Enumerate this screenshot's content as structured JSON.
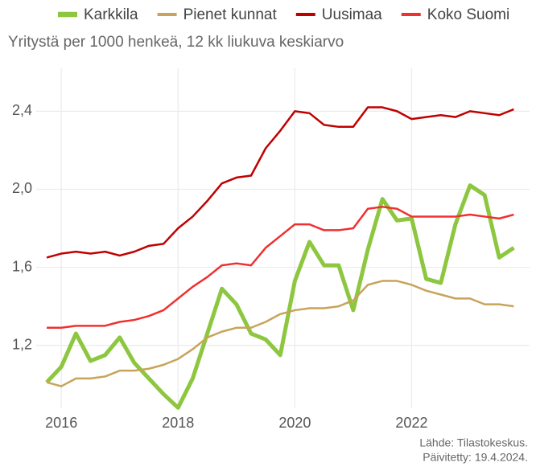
{
  "chart_data": {
    "type": "line",
    "subtitle": "Yritystä per 1000 henkeä, 12 kk liukuva keskiarvo",
    "caption": [
      "Lähde: Tilastokeskus.",
      "Päivitetty: 19.4.2024."
    ],
    "x": [
      2015.75,
      2016,
      2016.25,
      2016.5,
      2016.75,
      2017,
      2017.25,
      2017.5,
      2017.75,
      2018,
      2018.25,
      2018.5,
      2018.75,
      2019,
      2019.25,
      2019.5,
      2019.75,
      2020,
      2020.25,
      2020.5,
      2020.75,
      2021,
      2021.25,
      2021.5,
      2021.75,
      2022,
      2022.25,
      2022.5,
      2022.75,
      2023,
      2023.25,
      2023.5,
      2023.75
    ],
    "series": [
      {
        "name": "Karkkila",
        "color": "#8dc63f",
        "width": 5,
        "values": [
          1.01,
          1.09,
          1.26,
          1.12,
          1.15,
          1.24,
          1.11,
          1.03,
          0.95,
          0.88,
          1.03,
          1.26,
          1.49,
          1.41,
          1.26,
          1.23,
          1.15,
          1.53,
          1.73,
          1.61,
          1.61,
          1.38,
          1.69,
          1.95,
          1.84,
          1.85,
          1.54,
          1.52,
          1.82,
          2.02,
          1.97,
          1.65,
          1.7
        ]
      },
      {
        "name": "Pienet kunnat",
        "color": "#c8a45a",
        "width": 2.5,
        "values": [
          1.01,
          0.99,
          1.03,
          1.03,
          1.04,
          1.07,
          1.07,
          1.08,
          1.1,
          1.13,
          1.18,
          1.24,
          1.27,
          1.29,
          1.29,
          1.32,
          1.36,
          1.38,
          1.39,
          1.39,
          1.4,
          1.43,
          1.51,
          1.53,
          1.53,
          1.51,
          1.48,
          1.46,
          1.44,
          1.44,
          1.41,
          1.41,
          1.4
        ]
      },
      {
        "name": "Uusimaa",
        "color": "#c00000",
        "width": 2.5,
        "values": [
          1.65,
          1.67,
          1.68,
          1.67,
          1.68,
          1.66,
          1.68,
          1.71,
          1.72,
          1.8,
          1.86,
          1.94,
          2.03,
          2.06,
          2.07,
          2.21,
          2.3,
          2.4,
          2.39,
          2.33,
          2.32,
          2.32,
          2.42,
          2.42,
          2.4,
          2.36,
          2.37,
          2.38,
          2.37,
          2.4,
          2.39,
          2.38,
          2.41
        ]
      },
      {
        "name": "Koko Suomi",
        "color": "#f03030",
        "width": 2.5,
        "values": [
          1.29,
          1.29,
          1.3,
          1.3,
          1.3,
          1.32,
          1.33,
          1.35,
          1.38,
          1.44,
          1.5,
          1.55,
          1.61,
          1.62,
          1.61,
          1.7,
          1.76,
          1.82,
          1.82,
          1.79,
          1.79,
          1.8,
          1.9,
          1.91,
          1.9,
          1.86,
          1.86,
          1.86,
          1.86,
          1.87,
          1.86,
          1.85,
          1.87
        ]
      }
    ],
    "xlim": [
      2015.57,
      2024.02
    ],
    "xticks": [
      2016,
      2018,
      2020,
      2022
    ],
    "ylim": [
      0.877,
      2.62
    ],
    "yticks": [
      {
        "value": 1.2,
        "label": "1,2"
      },
      {
        "value": 1.6,
        "label": "1,6"
      },
      {
        "value": 2.0,
        "label": "2,0"
      },
      {
        "value": 2.4,
        "label": "2,4"
      }
    ],
    "grid": true,
    "legend": "top"
  }
}
